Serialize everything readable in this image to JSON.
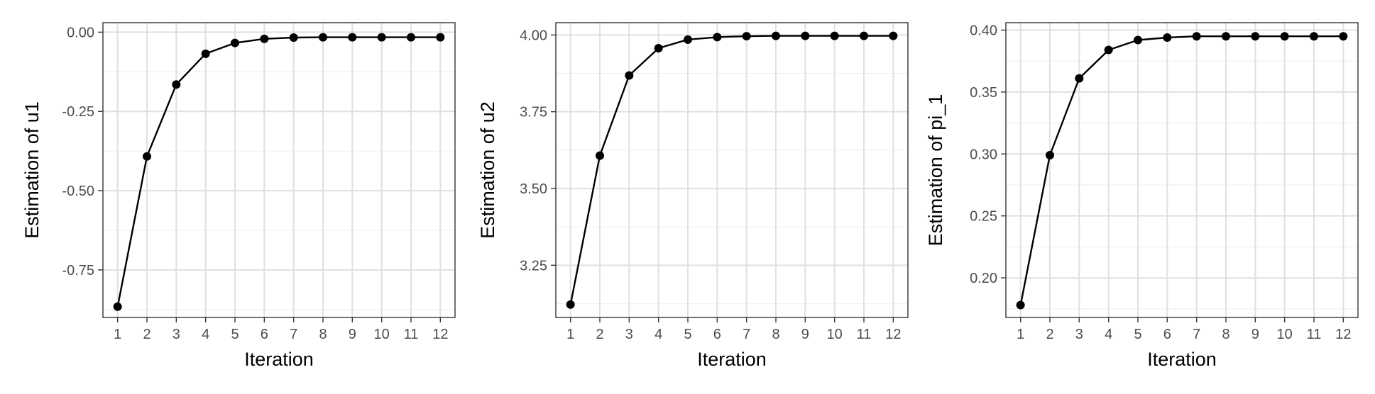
{
  "colors": {
    "background": "#ffffff",
    "panel_border": "#333333",
    "grid_major": "#e0e0e0",
    "grid_minor": "#f0f0f0",
    "series": "#000000",
    "tick_text": "#4d4d4d",
    "tick_mark": "#333333"
  },
  "chart_data": [
    {
      "type": "line",
      "markers": "point",
      "grid": true,
      "xlabel": "Iteration",
      "ylabel": "Estimation of u1",
      "x": [
        1,
        2,
        3,
        4,
        5,
        6,
        7,
        8,
        9,
        10,
        11,
        12
      ],
      "y": [
        -0.866,
        -0.392,
        -0.165,
        -0.068,
        -0.034,
        -0.021,
        -0.017,
        -0.016,
        -0.016,
        -0.016,
        -0.016,
        -0.016
      ],
      "xlim": [
        0.5,
        12.5
      ],
      "ylim": [
        -0.9,
        0.03
      ],
      "y_ticks": [
        -0.75,
        -0.5,
        -0.25,
        0.0
      ],
      "y_tick_labels": [
        "-0.75",
        "-0.50",
        "-0.25",
        "0.00"
      ],
      "x_tick_labels": [
        "1",
        "2",
        "3",
        "4",
        "5",
        "6",
        "7",
        "8",
        "9",
        "10",
        "11",
        "12"
      ]
    },
    {
      "type": "line",
      "markers": "point",
      "grid": true,
      "xlabel": "Iteration",
      "ylabel": "Estimation of u2",
      "x": [
        1,
        2,
        3,
        4,
        5,
        6,
        7,
        8,
        9,
        10,
        11,
        12
      ],
      "y": [
        3.122,
        3.607,
        3.868,
        3.957,
        3.985,
        3.993,
        3.996,
        3.997,
        3.997,
        3.997,
        3.997,
        3.997
      ],
      "xlim": [
        0.5,
        12.5
      ],
      "ylim": [
        3.08,
        4.04
      ],
      "y_ticks": [
        3.25,
        3.5,
        3.75,
        4.0
      ],
      "y_tick_labels": [
        "3.25",
        "3.50",
        "3.75",
        "4.00"
      ],
      "x_tick_labels": [
        "1",
        "2",
        "3",
        "4",
        "5",
        "6",
        "7",
        "8",
        "9",
        "10",
        "11",
        "12"
      ]
    },
    {
      "type": "line",
      "markers": "point",
      "grid": true,
      "xlabel": "Iteration",
      "ylabel": "Estimation of pi_1",
      "x": [
        1,
        2,
        3,
        4,
        5,
        6,
        7,
        8,
        9,
        10,
        11,
        12
      ],
      "y": [
        0.178,
        0.299,
        0.361,
        0.384,
        0.392,
        0.394,
        0.395,
        0.395,
        0.395,
        0.395,
        0.395,
        0.395
      ],
      "xlim": [
        0.5,
        12.5
      ],
      "ylim": [
        0.168,
        0.406
      ],
      "y_ticks": [
        0.2,
        0.25,
        0.3,
        0.35,
        0.4
      ],
      "y_tick_labels": [
        "0.20",
        "0.25",
        "0.30",
        "0.35",
        "0.40"
      ],
      "x_tick_labels": [
        "1",
        "2",
        "3",
        "4",
        "5",
        "6",
        "7",
        "8",
        "9",
        "10",
        "11",
        "12"
      ]
    }
  ]
}
